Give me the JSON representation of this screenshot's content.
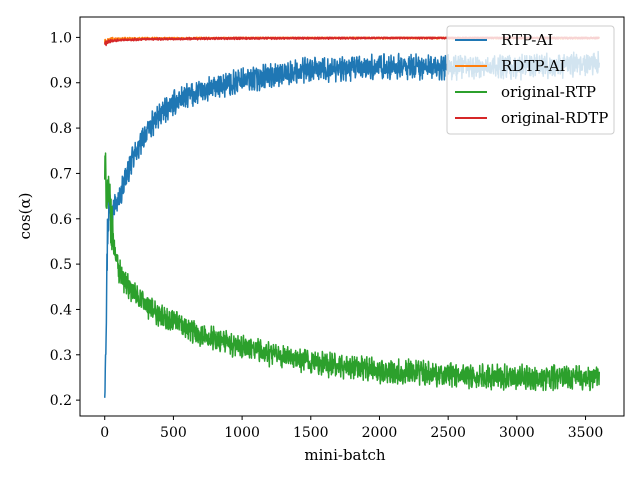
{
  "chart_data": {
    "type": "line",
    "title": "",
    "xlabel": "mini-batch",
    "ylabel": "cos(α)",
    "xlim": [
      -180,
      3780
    ],
    "ylim": [
      0.165,
      1.045
    ],
    "xticks": [
      0,
      500,
      1000,
      1500,
      2000,
      2500,
      3000,
      3500
    ],
    "xtick_labels": [
      "0",
      "500",
      "1000",
      "1500",
      "2000",
      "2500",
      "3000",
      "3500"
    ],
    "yticks": [
      0.2,
      0.3,
      0.4,
      0.5,
      0.6,
      0.7,
      0.8,
      0.9,
      1.0
    ],
    "ytick_labels": [
      "0.2",
      "0.3",
      "0.4",
      "0.5",
      "0.6",
      "0.7",
      "0.8",
      "0.9",
      "1.0"
    ],
    "grid": false,
    "legend_position": "top-right",
    "series": [
      {
        "name": "RTP-AI",
        "color": "#1f77b4",
        "noise": 0.022,
        "x": [
          0,
          10,
          20,
          30,
          50,
          80,
          100,
          150,
          200,
          250,
          300,
          400,
          500,
          600,
          700,
          800,
          1000,
          1200,
          1400,
          1600,
          1800,
          2000,
          2200,
          2400,
          2600,
          2800,
          3000,
          3200,
          3400,
          3600
        ],
        "y": [
          0.23,
          0.38,
          0.56,
          0.63,
          0.63,
          0.63,
          0.64,
          0.69,
          0.73,
          0.76,
          0.79,
          0.83,
          0.855,
          0.87,
          0.88,
          0.89,
          0.905,
          0.915,
          0.925,
          0.93,
          0.93,
          0.935,
          0.935,
          0.935,
          0.935,
          0.935,
          0.935,
          0.935,
          0.94,
          0.945
        ]
      },
      {
        "name": "RDTP-AI",
        "color": "#ff7f0e",
        "noise": 0.002,
        "x": [
          0,
          50,
          100,
          300,
          600,
          1000,
          2000,
          3000,
          3600
        ],
        "y": [
          0.99,
          0.995,
          0.997,
          0.998,
          0.998,
          0.999,
          0.999,
          0.999,
          0.999
        ]
      },
      {
        "name": "original-RTP",
        "color": "#2ca02c",
        "noise": 0.022,
        "x": [
          0,
          10,
          30,
          50,
          80,
          100,
          150,
          200,
          300,
          400,
          500,
          700,
          900,
          1100,
          1300,
          1500,
          1700,
          2000,
          2300,
          2600,
          3000,
          3300,
          3600
        ],
        "y": [
          0.7,
          0.68,
          0.64,
          0.58,
          0.52,
          0.49,
          0.46,
          0.44,
          0.41,
          0.385,
          0.37,
          0.345,
          0.325,
          0.31,
          0.295,
          0.285,
          0.275,
          0.265,
          0.26,
          0.255,
          0.25,
          0.25,
          0.25
        ]
      },
      {
        "name": "original-RDTP",
        "color": "#d62728",
        "noise": 0.002,
        "x": [
          0,
          20,
          50,
          100,
          300,
          600,
          1000,
          2000,
          3000,
          3600
        ],
        "y": [
          0.985,
          0.99,
          0.992,
          0.994,
          0.996,
          0.997,
          0.998,
          0.999,
          0.999,
          0.999
        ]
      }
    ]
  }
}
